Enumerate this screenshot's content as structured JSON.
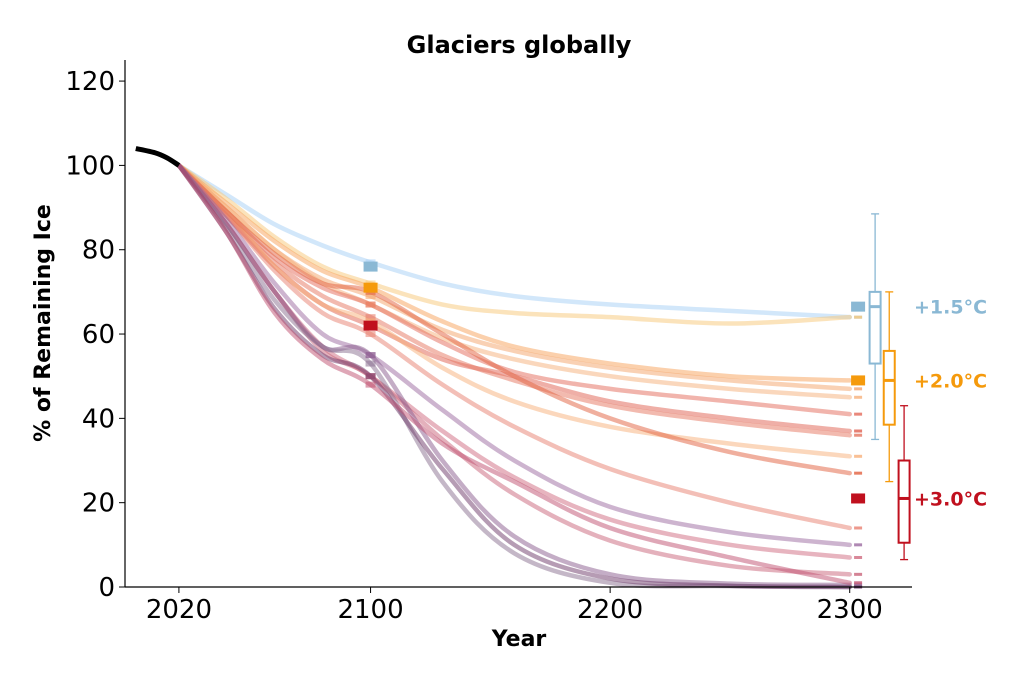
{
  "chart_data": {
    "type": "line",
    "title": "Glaciers globally",
    "xlabel": "Year",
    "ylabel": "% of Remaining Ice",
    "xlim": [
      1997.5,
      2326
    ],
    "ylim": [
      0,
      125
    ],
    "xticks": [
      2020,
      2100,
      2200,
      2300
    ],
    "yticks": [
      0,
      20,
      40,
      60,
      80,
      100,
      120
    ],
    "grid": false,
    "historical": {
      "x": [
        2002,
        2010,
        2015,
        2020
      ],
      "y": [
        104,
        103,
        101.8,
        100
      ],
      "color": "#000000"
    },
    "years": [
      2020,
      2040,
      2060,
      2080,
      2100,
      2130,
      2160,
      2200,
      2250,
      2300
    ],
    "series": [
      {
        "color": "#a6cff5",
        "values": [
          100,
          93,
          86,
          81,
          77,
          72,
          69,
          67,
          65.5,
          64
        ]
      },
      {
        "color": "#f8c878",
        "values": [
          100,
          92,
          83,
          76,
          72,
          67,
          65,
          64,
          62.5,
          64
        ]
      },
      {
        "color": "#f7a15a",
        "values": [
          100,
          91,
          82,
          75,
          71,
          63,
          57,
          53,
          50,
          49
        ]
      },
      {
        "color": "#f4a36a",
        "values": [
          100,
          90,
          80,
          73,
          69,
          61,
          56,
          52,
          49,
          47
        ]
      },
      {
        "color": "#f6b07a",
        "values": [
          100,
          90,
          80,
          72,
          67,
          59,
          54,
          50,
          47,
          45
        ]
      },
      {
        "color": "#e36a5a",
        "values": [
          100,
          89,
          78,
          71,
          67,
          58,
          51,
          47,
          44,
          41
        ]
      },
      {
        "color": "#e06050",
        "values": [
          100,
          88,
          76,
          67,
          62,
          54,
          50,
          44,
          40,
          37
        ]
      },
      {
        "color": "#e57560",
        "values": [
          100,
          88,
          77,
          69,
          64,
          55,
          49,
          43,
          39,
          36
        ]
      },
      {
        "color": "#f7b07a",
        "values": [
          100,
          89,
          76,
          67,
          63,
          52,
          44,
          38,
          34,
          31
        ]
      },
      {
        "color": "#e2603e",
        "values": [
          100,
          89,
          79,
          72,
          70,
          60,
          50,
          40,
          32,
          27
        ]
      },
      {
        "color": "#e88070",
        "values": [
          100,
          88,
          75,
          65,
          60,
          48,
          38,
          28,
          20,
          14
        ]
      },
      {
        "color": "#9b6aa0",
        "values": [
          100,
          87,
          72,
          60,
          55,
          42,
          30,
          19,
          13,
          10
        ]
      },
      {
        "color": "#d06a80",
        "values": [
          100,
          86,
          70,
          57,
          50,
          37,
          26,
          16,
          10,
          7
        ]
      },
      {
        "color": "#c9647a",
        "values": [
          100,
          86,
          70,
          56,
          50,
          35,
          22,
          11,
          5,
          3
        ]
      },
      {
        "color": "#8a5c8e",
        "values": [
          100,
          86,
          70,
          57,
          55,
          30,
          12,
          3,
          0.8,
          0.5
        ]
      },
      {
        "color": "#8a7090",
        "values": [
          100,
          85,
          68,
          57,
          53,
          25,
          8,
          1,
          0.2,
          0
        ]
      },
      {
        "color": "#6e3a6a",
        "values": [
          100,
          84,
          66,
          55,
          50,
          28,
          10,
          2,
          0.3,
          0
        ]
      },
      {
        "color": "#c05070",
        "values": [
          100,
          84,
          65,
          54,
          48,
          34,
          25,
          14,
          7,
          1
        ]
      }
    ],
    "scenarios": [
      {
        "label": "+1.5°C",
        "color": "#8ab8d4",
        "median_2100": 76,
        "median_2300": 66.5,
        "box": {
          "x": 2310.6,
          "whisker_low": 35,
          "q1": 53,
          "median": 66.5,
          "q3": 70,
          "whisker_high": 88.5
        }
      },
      {
        "label": "+2.0°C",
        "color": "#f59a0c",
        "median_2100": 71,
        "median_2300": 49,
        "box": {
          "x": 2316.5,
          "whisker_low": 25,
          "q1": 38.5,
          "median": 49,
          "q3": 56,
          "whisker_high": 70
        }
      },
      {
        "label": "+3.0°C",
        "color": "#c0101e",
        "median_2100": 62,
        "median_2300": 21,
        "box": {
          "x": 2322.7,
          "whisker_low": 6.5,
          "q1": 10.5,
          "median": 21,
          "q3": 30,
          "whisker_high": 43
        }
      }
    ]
  }
}
